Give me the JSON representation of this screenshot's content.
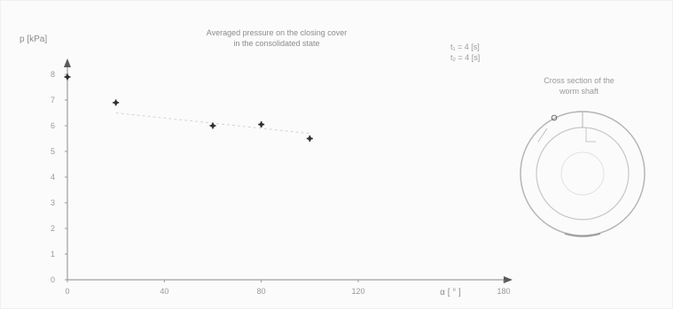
{
  "chart_data": {
    "type": "scatter",
    "title_lines": [
      "Averaged pressure on the closing cover",
      "in the consolidated state"
    ],
    "ylabel": "p  [kPa]",
    "xlabel": "α  [ ° ]",
    "x_ticks": [
      "0",
      "40",
      "80",
      "120",
      "180"
    ],
    "x_tick_values": [
      0,
      40,
      80,
      120,
      180
    ],
    "y_ticks": [
      "0",
      "1",
      "2",
      "3",
      "4",
      "5",
      "6",
      "7",
      "8"
    ],
    "y_tick_values": [
      0,
      1,
      2,
      3,
      4,
      5,
      6,
      7,
      8
    ],
    "xlim": [
      0,
      180
    ],
    "ylim": [
      0,
      8
    ],
    "grid": false,
    "annotation_lines": [
      "t₁ = 4 [s]",
      "t₂ = 4 [s]"
    ],
    "points": [
      {
        "x": 0,
        "y": 7.9
      },
      {
        "x": 20,
        "y": 6.9
      },
      {
        "x": 60,
        "y": 6.0
      },
      {
        "x": 80,
        "y": 6.05
      },
      {
        "x": 100,
        "y": 5.5
      }
    ],
    "trend": {
      "from": {
        "x": 20,
        "y": 6.5
      },
      "to": {
        "x": 100,
        "y": 5.7
      }
    }
  },
  "inset": {
    "title_lines": [
      "Cross section of the",
      "worm shaft"
    ],
    "colors": {
      "outer": "#b5b5b5",
      "inner": "#c7c7c7",
      "center": "#e2e2e2"
    }
  },
  "colors": {
    "axis": "#8a8a8a",
    "marker": "#2f2f2f",
    "trend": "#d4d4d4"
  }
}
